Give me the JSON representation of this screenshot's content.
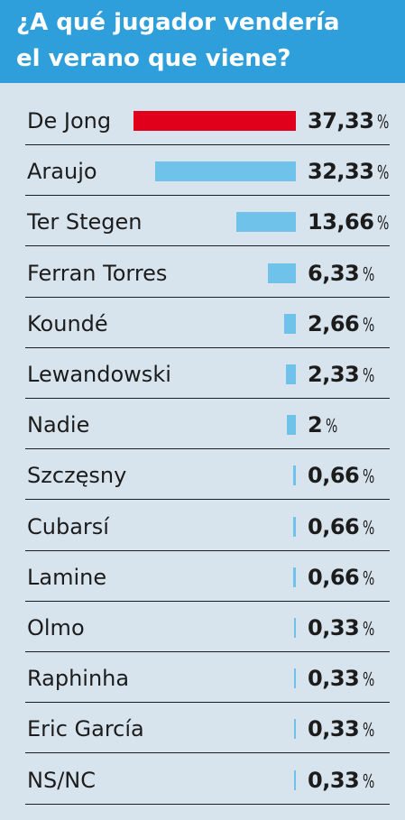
{
  "title_lines": [
    "¿A qué jugador vendería",
    "el verano que viene?"
  ],
  "colors": {
    "header": "#2f9fdb",
    "background": "#d8e4ed",
    "highlight_bar": "#e0001b",
    "bar": "#6fc3ea"
  },
  "chart_data": {
    "type": "bar",
    "orientation": "horizontal",
    "title": "¿A qué jugador vendería el verano que viene?",
    "unit": "%",
    "categories": [
      "De Jong",
      "Araujo",
      "Ter Stegen",
      "Ferran Torres",
      "Koundé",
      "Lewandowski",
      "Nadie",
      "Szczęsny",
      "Cubarsí",
      "Lamine",
      "Olmo",
      "Raphinha",
      "Eric García",
      "NS/NC"
    ],
    "values": [
      37.33,
      32.33,
      13.66,
      6.33,
      2.66,
      2.33,
      2,
      0.66,
      0.66,
      0.66,
      0.33,
      0.33,
      0.33,
      0.33
    ],
    "value_labels": [
      "37,33",
      "32,33",
      "13,66",
      "6,33",
      "2,66",
      "2,33",
      "2",
      "0,66",
      "0,66",
      "0,66",
      "0,33",
      "0,33",
      "0,33",
      "0,33"
    ],
    "highlighted_index": 0,
    "grid": false
  }
}
